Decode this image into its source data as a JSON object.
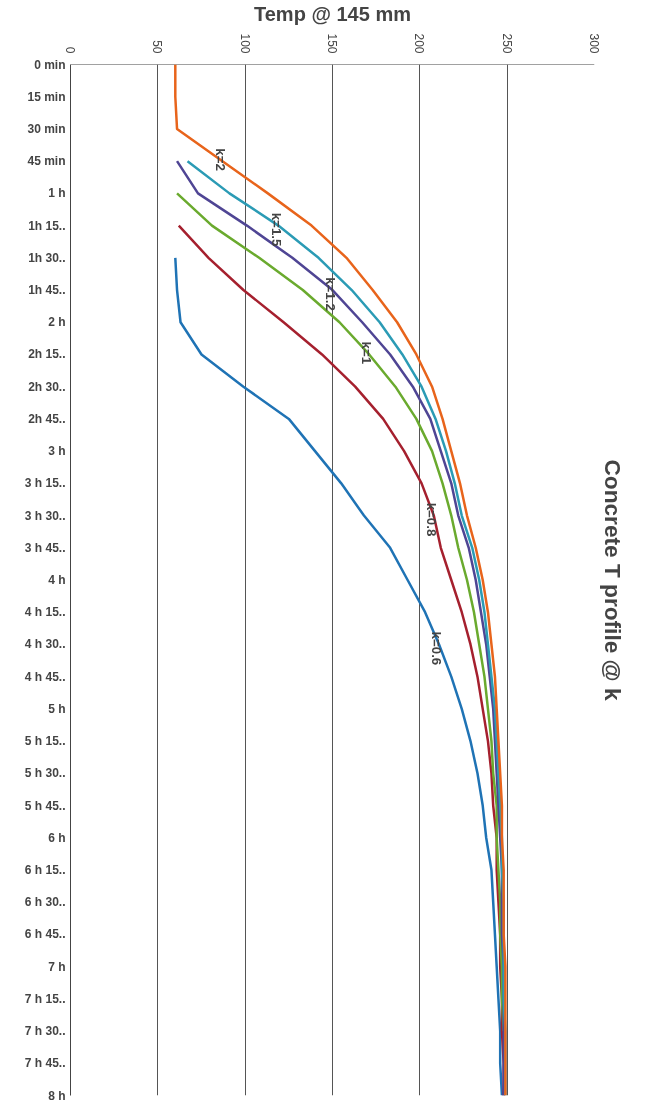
{
  "chart_data": {
    "type": "line",
    "orientation": "horizontal",
    "title": "Concrete T profile @ k",
    "xlabel": "Temp @ 145 mm",
    "categories": [
      "0 min",
      "15 min",
      "30 min",
      "45 min",
      "1 h",
      "1h 15..",
      "1h 30..",
      "1h 45..",
      "2 h",
      "2h 15..",
      "2h 30..",
      "2h 45..",
      "3 h",
      "3 h 15..",
      "3 h 30..",
      "3 h 45..",
      "4 h",
      "4 h 15..",
      "4 h 30..",
      "4 h 45..",
      "5 h",
      "5 h 15..",
      "5 h 30..",
      "5 h 45..",
      "6 h",
      "6 h 15..",
      "6 h 30..",
      "6 h 45..",
      "7 h",
      "7 h 15..",
      "7 h 30..",
      "7 h 45..",
      "8 h"
    ],
    "xlim": [
      0,
      300
    ],
    "xticks": [
      0,
      50,
      100,
      150,
      200,
      250,
      300
    ],
    "grid": "x",
    "series": [
      {
        "name": "k=2",
        "color": "#e8641b",
        "values": [
          60,
          60,
          61,
          87,
          113,
          138,
          158,
          173,
          187,
          198,
          207,
          213,
          218,
          223,
          227,
          232,
          236,
          239,
          241,
          243,
          244,
          245,
          246,
          247,
          247,
          248,
          248,
          248,
          249,
          249,
          249,
          249,
          249
        ]
      },
      {
        "name": "k=1.5",
        "color": "#2b9bb5",
        "values": [
          null,
          null,
          null,
          67,
          91,
          119,
          142,
          161,
          177,
          190,
          201,
          209,
          215,
          220,
          224,
          230,
          234,
          237,
          239,
          241,
          243,
          244,
          245,
          246,
          247,
          247,
          248,
          248,
          248,
          248,
          249,
          249,
          249
        ]
      },
      {
        "name": "k=1.2",
        "color": "#4f4594",
        "values": [
          null,
          null,
          null,
          61,
          73,
          101,
          127,
          150,
          167,
          183,
          196,
          206,
          212,
          218,
          222,
          228,
          232,
          235,
          238,
          240,
          242,
          243,
          244,
          245,
          246,
          247,
          247,
          247,
          248,
          248,
          248,
          248,
          248
        ]
      },
      {
        "name": "k=1",
        "color": "#6aaa2e",
        "values": [
          null,
          null,
          null,
          null,
          61,
          81,
          108,
          133,
          154,
          171,
          186,
          198,
          207,
          213,
          218,
          222,
          227,
          231,
          234,
          237,
          239,
          241,
          242,
          244,
          244,
          245,
          246,
          246,
          247,
          247,
          248,
          null,
          null
        ]
      },
      {
        "name": "k=0.8",
        "color": "#a5202e",
        "values": [
          null,
          null,
          null,
          null,
          null,
          62,
          79,
          99,
          122,
          144,
          163,
          179,
          191,
          201,
          208,
          212,
          218,
          224,
          229,
          233,
          236,
          239,
          241,
          242,
          244,
          244,
          245,
          246,
          246,
          247,
          247,
          248,
          248
        ]
      },
      {
        "name": "k=0.6",
        "color": "#1f73b5",
        "values": [
          null,
          null,
          null,
          null,
          null,
          null,
          60,
          61,
          63,
          75,
          99,
          125,
          140,
          155,
          168,
          183,
          193,
          203,
          211,
          218,
          224,
          229,
          233,
          236,
          238,
          241,
          242,
          243,
          244,
          245,
          246,
          246,
          247
        ]
      }
    ]
  }
}
